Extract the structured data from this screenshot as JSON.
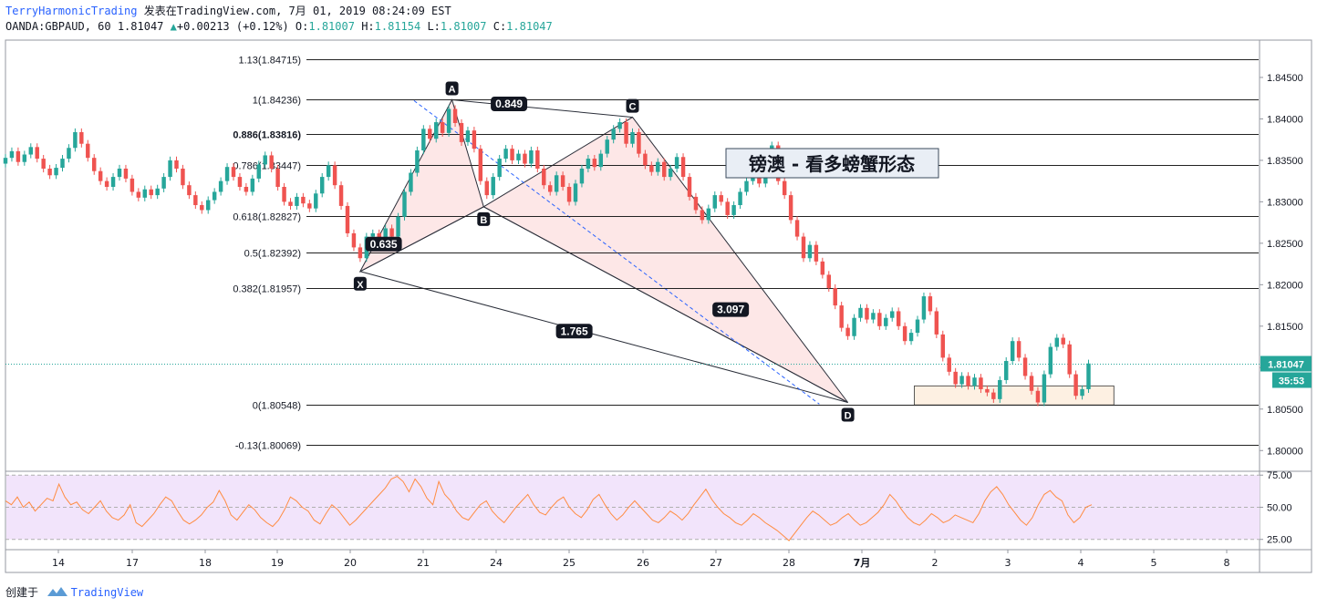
{
  "header": {
    "author": "TerryHarmonicTrading",
    "published": "发表在TradingView.com, 7月 01, 2019 08:24:09 EST",
    "symbol_line": "OANDA:GBPAUD, 60 1.81047",
    "change": "+0.00213 (+0.12%)",
    "o_label": "O:",
    "o_value": "1.81007",
    "h_label": "H:",
    "h_value": "1.81154",
    "l_label": "L:",
    "l_value": "1.81007",
    "c_label": "C:",
    "c_value": "1.81047"
  },
  "footer": {
    "created_by": "创建于",
    "brand": "TradingView"
  },
  "colors": {
    "up": "#26a69a",
    "down": "#ef5350",
    "accent": "#2962ff",
    "rsi": "#ff8c42",
    "rsi_band": "#f2e4fb",
    "pattern_fill": "#fde3e3",
    "zone_fill": "#fdf0e2"
  },
  "chart_data": {
    "type": "candlestick",
    "title": "镑澳 - 看多螃蟹形态",
    "symbol": "OANDA:GBPAUD",
    "interval": "60",
    "price_axis": {
      "ylim": [
        1.7975,
        1.8495
      ],
      "ticks": [
        "1.84500",
        "1.84000",
        "1.83500",
        "1.83000",
        "1.82500",
        "1.82000",
        "1.81500",
        "1.81000",
        "1.80500",
        "1.80000"
      ]
    },
    "last_price": "1.81047",
    "countdown": "35:53",
    "time_axis": {
      "xlim": [
        13.0,
        32.8
      ],
      "ticks": [
        "14",
        "17",
        "18",
        "19",
        "20",
        "21",
        "24",
        "25",
        "26",
        "27",
        "28",
        "7月",
        "2",
        "3",
        "4",
        "5",
        "8"
      ]
    },
    "fib_levels": [
      {
        "label": "1.13(1.84715)",
        "price": 1.84715
      },
      {
        "label": "1(1.84236)",
        "price": 1.84236
      },
      {
        "label": "0.886(1.83816)",
        "price": 1.83816,
        "bold": true
      },
      {
        "label": "0.786(1.83447)",
        "price": 1.83447
      },
      {
        "label": "0.618(1.82827)",
        "price": 1.82827
      },
      {
        "label": "0.5(1.82392)",
        "price": 1.82392
      },
      {
        "label": "0.382(1.81957)",
        "price": 1.81957
      },
      {
        "label": "0(1.80548)",
        "price": 1.80548
      },
      {
        "label": "-0.13(1.80069)",
        "price": 1.80069
      }
    ],
    "pattern_points": [
      {
        "label": "X",
        "t": 18.6,
        "price": 1.8216
      },
      {
        "label": "A",
        "t": 20.05,
        "price": 1.8423
      },
      {
        "label": "B",
        "t": 20.55,
        "price": 1.8294
      },
      {
        "label": "C",
        "t": 22.9,
        "price": 1.8402
      },
      {
        "label": "D",
        "t": 26.3,
        "price": 1.8058
      }
    ],
    "ratios": [
      {
        "label": "0.849",
        "t": 20.95,
        "price": 1.8418
      },
      {
        "label": "0.635",
        "t": 18.97,
        "price": 1.8249
      },
      {
        "label": "3.097",
        "t": 24.45,
        "price": 1.817
      },
      {
        "label": "1.765",
        "t": 21.98,
        "price": 1.8144
      }
    ],
    "candles": [
      [
        13.0,
        1.8346,
        1.8353
      ],
      [
        13.1,
        1.8353,
        1.8361
      ],
      [
        13.2,
        1.8361,
        1.8348
      ],
      [
        13.3,
        1.8348,
        1.8357
      ],
      [
        13.4,
        1.8357,
        1.8366
      ],
      [
        13.5,
        1.8366,
        1.8352
      ],
      [
        13.6,
        1.8352,
        1.834
      ],
      [
        13.7,
        1.834,
        1.8332
      ],
      [
        13.8,
        1.8332,
        1.8341
      ],
      [
        13.9,
        1.8341,
        1.8352
      ],
      [
        14.0,
        1.8352,
        1.8365
      ],
      [
        14.1,
        1.8365,
        1.8384
      ],
      [
        14.2,
        1.8384,
        1.837
      ],
      [
        14.3,
        1.837,
        1.8353
      ],
      [
        14.4,
        1.8353,
        1.8337
      ],
      [
        14.5,
        1.8337,
        1.8325
      ],
      [
        14.6,
        1.8325,
        1.8318
      ],
      [
        14.7,
        1.8318,
        1.833
      ],
      [
        14.8,
        1.833,
        1.834
      ],
      [
        14.9,
        1.834,
        1.8328
      ],
      [
        15.0,
        1.8328,
        1.8312
      ],
      [
        15.1,
        1.8312,
        1.8305
      ],
      [
        15.2,
        1.8305,
        1.8315
      ],
      [
        15.3,
        1.8315,
        1.8308
      ],
      [
        15.4,
        1.8308,
        1.8316
      ],
      [
        15.5,
        1.8316,
        1.833
      ],
      [
        15.6,
        1.833,
        1.835
      ],
      [
        15.7,
        1.835,
        1.834
      ],
      [
        15.8,
        1.834,
        1.832
      ],
      [
        15.9,
        1.832,
        1.8308
      ],
      [
        16.0,
        1.8308,
        1.8296
      ],
      [
        16.1,
        1.8296,
        1.829
      ],
      [
        16.2,
        1.829,
        1.8302
      ],
      [
        16.3,
        1.8302,
        1.8312
      ],
      [
        16.4,
        1.8312,
        1.8325
      ],
      [
        16.5,
        1.8325,
        1.8342
      ],
      [
        16.6,
        1.8342,
        1.833
      ],
      [
        16.7,
        1.833,
        1.8318
      ],
      [
        16.8,
        1.8318,
        1.8312
      ],
      [
        16.9,
        1.8312,
        1.8328
      ],
      [
        17.0,
        1.8328,
        1.8345
      ],
      [
        17.1,
        1.8345,
        1.8356
      ],
      [
        17.2,
        1.8356,
        1.834
      ],
      [
        17.3,
        1.834,
        1.8318
      ],
      [
        17.4,
        1.8318,
        1.83
      ],
      [
        17.5,
        1.83,
        1.8295
      ],
      [
        17.6,
        1.8295,
        1.8306
      ],
      [
        17.7,
        1.8306,
        1.8298
      ],
      [
        17.8,
        1.8298,
        1.8292
      ],
      [
        17.9,
        1.8292,
        1.831
      ],
      [
        18.0,
        1.831,
        1.833
      ],
      [
        18.1,
        1.833,
        1.8344
      ],
      [
        18.2,
        1.8344,
        1.832
      ],
      [
        18.3,
        1.832,
        1.8295
      ],
      [
        18.4,
        1.8295,
        1.8262
      ],
      [
        18.5,
        1.8262,
        1.8245
      ],
      [
        18.6,
        1.8245,
        1.8232
      ],
      [
        18.7,
        1.8232,
        1.8258
      ],
      [
        18.8,
        1.8258,
        1.8262
      ],
      [
        18.9,
        1.8262,
        1.8255
      ],
      [
        19.0,
        1.8255,
        1.8268
      ],
      [
        19.1,
        1.8268,
        1.8258
      ],
      [
        19.2,
        1.8258,
        1.8282
      ],
      [
        19.3,
        1.8282,
        1.8312
      ],
      [
        19.4,
        1.8312,
        1.8335
      ],
      [
        19.5,
        1.8335,
        1.8362
      ],
      [
        19.6,
        1.8362,
        1.8388
      ],
      [
        19.7,
        1.8388,
        1.8376
      ],
      [
        19.8,
        1.8376,
        1.8396
      ],
      [
        19.9,
        1.8396,
        1.8383
      ],
      [
        20.0,
        1.8383,
        1.8412
      ],
      [
        20.1,
        1.8412,
        1.8395
      ],
      [
        20.2,
        1.8395,
        1.8372
      ],
      [
        20.3,
        1.8372,
        1.8386
      ],
      [
        20.4,
        1.8386,
        1.8364
      ],
      [
        20.5,
        1.8364,
        1.8325
      ],
      [
        20.6,
        1.8325,
        1.8308
      ],
      [
        20.7,
        1.8308,
        1.833
      ],
      [
        20.8,
        1.833,
        1.8352
      ],
      [
        20.9,
        1.8352,
        1.8364
      ],
      [
        21.0,
        1.8364,
        1.835
      ],
      [
        21.1,
        1.835,
        1.8358
      ],
      [
        21.2,
        1.8358,
        1.8346
      ],
      [
        21.3,
        1.8346,
        1.8362
      ],
      [
        21.4,
        1.8362,
        1.834
      ],
      [
        21.5,
        1.834,
        1.832
      ],
      [
        21.6,
        1.832,
        1.8312
      ],
      [
        21.7,
        1.8312,
        1.8332
      ],
      [
        21.8,
        1.8332,
        1.8318
      ],
      [
        21.9,
        1.8318,
        1.83
      ],
      [
        22.0,
        1.83,
        1.8322
      ],
      [
        22.1,
        1.8322,
        1.834
      ],
      [
        22.2,
        1.834,
        1.8352
      ],
      [
        22.3,
        1.8352,
        1.8342
      ],
      [
        22.4,
        1.8342,
        1.8358
      ],
      [
        22.5,
        1.8358,
        1.8375
      ],
      [
        22.6,
        1.8375,
        1.8388
      ],
      [
        22.7,
        1.8388,
        1.8396
      ],
      [
        22.8,
        1.8396,
        1.837
      ],
      [
        22.9,
        1.837,
        1.8384
      ],
      [
        23.0,
        1.8384,
        1.8358
      ],
      [
        23.1,
        1.8358,
        1.8344
      ],
      [
        23.2,
        1.8344,
        1.8336
      ],
      [
        23.3,
        1.8336,
        1.8348
      ],
      [
        23.4,
        1.8348,
        1.833
      ],
      [
        23.5,
        1.833,
        1.834
      ],
      [
        23.6,
        1.834,
        1.8354
      ],
      [
        23.7,
        1.8354,
        1.833
      ],
      [
        23.8,
        1.833,
        1.8306
      ],
      [
        23.9,
        1.8306,
        1.829
      ],
      [
        24.0,
        1.829,
        1.8278
      ],
      [
        24.1,
        1.8278,
        1.8292
      ],
      [
        24.2,
        1.8292,
        1.8308
      ],
      [
        24.3,
        1.8308,
        1.83
      ],
      [
        24.4,
        1.83,
        1.8284
      ],
      [
        24.5,
        1.8284,
        1.8296
      ],
      [
        24.6,
        1.8296,
        1.8312
      ],
      [
        24.7,
        1.8312,
        1.8325
      ],
      [
        24.8,
        1.8325,
        1.8338
      ],
      [
        24.9,
        1.8338,
        1.8322
      ],
      [
        25.0,
        1.8322,
        1.834
      ],
      [
        25.1,
        1.834,
        1.8368
      ],
      [
        25.2,
        1.8368,
        1.8325
      ],
      [
        25.3,
        1.8325,
        1.8308
      ],
      [
        25.4,
        1.8308,
        1.8278
      ],
      [
        25.5,
        1.8278,
        1.8258
      ],
      [
        25.6,
        1.8258,
        1.8232
      ],
      [
        25.7,
        1.8232,
        1.8248
      ],
      [
        25.8,
        1.8248,
        1.8228
      ],
      [
        25.9,
        1.8228,
        1.8212
      ],
      [
        26.0,
        1.8212,
        1.8196
      ],
      [
        26.1,
        1.8196,
        1.8175
      ],
      [
        26.2,
        1.8175,
        1.8148
      ],
      [
        26.3,
        1.8148,
        1.8138
      ],
      [
        26.4,
        1.8138,
        1.816
      ],
      [
        26.5,
        1.816,
        1.8172
      ],
      [
        26.6,
        1.8172,
        1.8158
      ],
      [
        26.7,
        1.8158,
        1.8166
      ],
      [
        26.8,
        1.8166,
        1.815
      ],
      [
        26.9,
        1.815,
        1.816
      ],
      [
        27.0,
        1.816,
        1.8168
      ],
      [
        27.1,
        1.8168,
        1.815
      ],
      [
        27.2,
        1.815,
        1.8132
      ],
      [
        27.3,
        1.8132,
        1.8142
      ],
      [
        27.4,
        1.8142,
        1.8158
      ],
      [
        27.5,
        1.8158,
        1.8186
      ],
      [
        27.6,
        1.8186,
        1.8168
      ],
      [
        27.7,
        1.8168,
        1.814
      ],
      [
        27.8,
        1.814,
        1.8112
      ],
      [
        27.9,
        1.8112,
        1.8095
      ],
      [
        28.0,
        1.8095,
        1.808
      ],
      [
        28.1,
        1.808,
        1.809
      ],
      [
        28.2,
        1.809,
        1.8078
      ],
      [
        28.3,
        1.8078,
        1.8088
      ],
      [
        28.4,
        1.8088,
        1.8074
      ],
      [
        28.5,
        1.8074,
        1.807
      ],
      [
        28.6,
        1.807,
        1.8062
      ],
      [
        28.7,
        1.8062,
        1.8085
      ],
      [
        28.8,
        1.8085,
        1.8108
      ],
      [
        28.9,
        1.8108,
        1.8132
      ],
      [
        29.0,
        1.8132,
        1.8112
      ],
      [
        29.1,
        1.8112,
        1.809
      ],
      [
        29.2,
        1.809,
        1.8072
      ],
      [
        29.3,
        1.8072,
        1.8058
      ],
      [
        29.4,
        1.8058,
        1.8092
      ],
      [
        29.5,
        1.8092,
        1.8125
      ],
      [
        29.6,
        1.8125,
        1.8136
      ],
      [
        29.7,
        1.8136,
        1.8128
      ],
      [
        29.8,
        1.8128,
        1.8092
      ],
      [
        29.9,
        1.8092,
        1.8066
      ],
      [
        30.0,
        1.8066,
        1.8074
      ],
      [
        30.1,
        1.8074,
        1.8105
      ]
    ],
    "rsi": {
      "levels": [
        "75.00",
        "50.00",
        "25.00"
      ],
      "ylim": [
        17,
        78
      ],
      "values": [
        55,
        52,
        58,
        50,
        54,
        47,
        52,
        57,
        55,
        68,
        58,
        52,
        54,
        48,
        45,
        50,
        55,
        47,
        42,
        40,
        44,
        52,
        38,
        35,
        40,
        45,
        52,
        58,
        55,
        47,
        40,
        37,
        40,
        44,
        50,
        54,
        63,
        55,
        44,
        40,
        46,
        52,
        48,
        42,
        38,
        35,
        40,
        48,
        58,
        55,
        50,
        47,
        40,
        37,
        45,
        52,
        48,
        42,
        36,
        40,
        45,
        50,
        55,
        60,
        65,
        72,
        74,
        70,
        62,
        72,
        66,
        57,
        52,
        70,
        60,
        55,
        47,
        42,
        40,
        46,
        52,
        55,
        47,
        42,
        38,
        44,
        50,
        55,
        60,
        52,
        46,
        44,
        50,
        55,
        58,
        50,
        45,
        42,
        48,
        56,
        60,
        52,
        45,
        40,
        44,
        50,
        55,
        50,
        45,
        40,
        38,
        42,
        47,
        44,
        40,
        45,
        52,
        58,
        64,
        56,
        50,
        45,
        42,
        38,
        36,
        40,
        45,
        42,
        38,
        35,
        32,
        28,
        24,
        30,
        36,
        42,
        47,
        44,
        40,
        36,
        38,
        42,
        45,
        40,
        36,
        38,
        42,
        46,
        52,
        60,
        55,
        48,
        42,
        38,
        36,
        40,
        45,
        42,
        38,
        40,
        44,
        42,
        40,
        38,
        45,
        55,
        62,
        66,
        60,
        52,
        46,
        40,
        36,
        42,
        52,
        60,
        63,
        58,
        55,
        44,
        38,
        42,
        50,
        52
      ]
    }
  }
}
